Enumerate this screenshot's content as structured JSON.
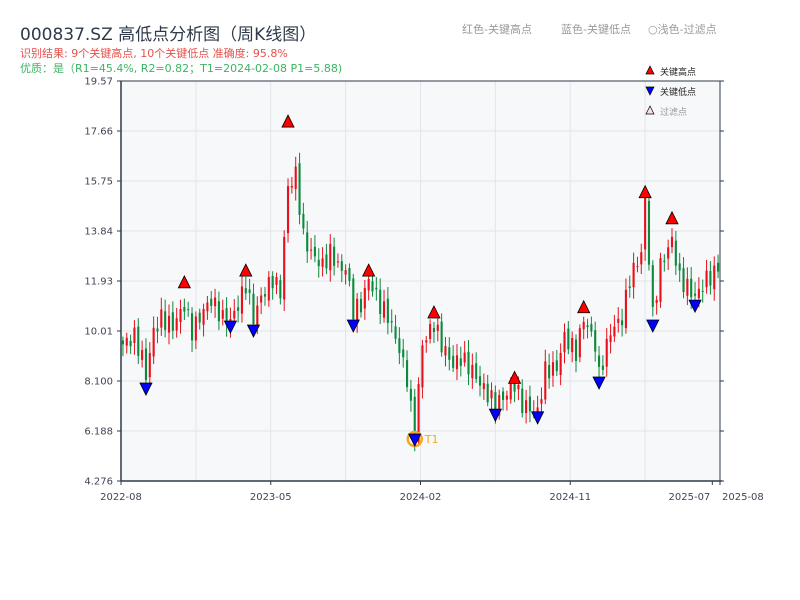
{
  "header": {
    "title": "000837.SZ 高低点分析图（周K线图）",
    "result_line": "识别结果: 9个关键高点, 10个关键低点  准确度: 95.8%",
    "quality_line": "优质：是（R1=45.4%, R2=0.82；T1=2024-02-08 P1=5.88)",
    "legend_red": "红色-关键高点",
    "legend_blue": "蓝色-关键低点",
    "legend_filtered": "○浅色-过滤点"
  },
  "colors": {
    "up": "#e8101a",
    "down": "#0c8a3c",
    "high_marker": "#ff0000",
    "low_marker": "#0000ff",
    "t1": "#f5a623",
    "plot_bg": "#f6f8fa"
  },
  "chart_data": {
    "type": "candlestick",
    "title": "000837.SZ 高低点分析图（周K线图）",
    "ylim": [
      4.276,
      19.57
    ],
    "yticks": [
      "19.57",
      "17.66",
      "15.75",
      "13.84",
      "11.93",
      "10.01",
      "8.100",
      "6.188",
      "4.276"
    ],
    "xlim_weeks": [
      0,
      156
    ],
    "xticks": [
      {
        "label": "2022-08",
        "week": 0
      },
      {
        "label": "2023-05",
        "week": 39
      },
      {
        "label": "2024-02",
        "week": 78
      },
      {
        "label": "2024-11",
        "week": 117
      },
      {
        "label": "2025-07",
        "week": 154
      },
      {
        "label": "2025-08",
        "week": 156
      }
    ],
    "price_path": [
      [
        0,
        9.5
      ],
      [
        3,
        9.8
      ],
      [
        5,
        9.0
      ],
      [
        6,
        8.3
      ],
      [
        8,
        10.0
      ],
      [
        10,
        10.5
      ],
      [
        13,
        10.2
      ],
      [
        16,
        11.0
      ],
      [
        18,
        10.0
      ],
      [
        21,
        10.8
      ],
      [
        23,
        11.2
      ],
      [
        26,
        10.5
      ],
      [
        28,
        10.4
      ],
      [
        30,
        11.0
      ],
      [
        32,
        11.8
      ],
      [
        34,
        10.5
      ],
      [
        36,
        11.3
      ],
      [
        39,
        12.0
      ],
      [
        41,
        11.5
      ],
      [
        43,
        15.5
      ],
      [
        45,
        16.0
      ],
      [
        47,
        13.6
      ],
      [
        49,
        13.0
      ],
      [
        52,
        12.5
      ],
      [
        54,
        13.0
      ],
      [
        57,
        12.3
      ],
      [
        58,
        12.5
      ],
      [
        60,
        10.8
      ],
      [
        62,
        11.0
      ],
      [
        64,
        12.0
      ],
      [
        67,
        11.0
      ],
      [
        69,
        10.6
      ],
      [
        72,
        9.3
      ],
      [
        74,
        8.2
      ],
      [
        75,
        7.0
      ],
      [
        76,
        6.1
      ],
      [
        78,
        9.5
      ],
      [
        81,
        10.3
      ],
      [
        83,
        9.5
      ],
      [
        86,
        8.7
      ],
      [
        88,
        9.0
      ],
      [
        91,
        8.5
      ],
      [
        93,
        8.0
      ],
      [
        97,
        7.2
      ],
      [
        100,
        7.6
      ],
      [
        102,
        8.0
      ],
      [
        104,
        7.2
      ],
      [
        108,
        6.9
      ],
      [
        110,
        8.5
      ],
      [
        113,
        8.6
      ],
      [
        115,
        9.8
      ],
      [
        118,
        9.2
      ],
      [
        120,
        10.5
      ],
      [
        123,
        9.5
      ],
      [
        124,
        8.3
      ],
      [
        127,
        10.0
      ],
      [
        130,
        10.5
      ],
      [
        132,
        12.0
      ],
      [
        135,
        13.0
      ],
      [
        136,
        15.0
      ],
      [
        138,
        10.6
      ],
      [
        140,
        12.5
      ],
      [
        143,
        13.5
      ],
      [
        145,
        12.0
      ],
      [
        147,
        11.7
      ],
      [
        149,
        11.3
      ],
      [
        152,
        12.0
      ],
      [
        154,
        12.2
      ],
      [
        156,
        12.8
      ]
    ],
    "key_highs": [
      {
        "week": 16,
        "price": 11.85
      },
      {
        "week": 32,
        "price": 12.3
      },
      {
        "week": 43,
        "price": 18.0
      },
      {
        "week": 64,
        "price": 12.3
      },
      {
        "week": 81,
        "price": 10.7
      },
      {
        "week": 102,
        "price": 8.2
      },
      {
        "week": 120,
        "price": 10.9
      },
      {
        "week": 136,
        "price": 15.3
      },
      {
        "week": 143,
        "price": 14.3
      }
    ],
    "key_lows": [
      {
        "week": 6,
        "price": 7.83
      },
      {
        "week": 28,
        "price": 10.2
      },
      {
        "week": 34,
        "price": 10.05
      },
      {
        "week": 60,
        "price": 10.24
      },
      {
        "week": 76,
        "price": 5.88
      },
      {
        "week": 97,
        "price": 6.83
      },
      {
        "week": 108,
        "price": 6.73
      },
      {
        "week": 124,
        "price": 8.06
      },
      {
        "week": 138,
        "price": 10.24
      },
      {
        "week": 149,
        "price": 11.0
      }
    ],
    "t1": {
      "label": "T1",
      "week": 76,
      "price": 5.88
    },
    "legend": [
      "关键高点",
      "关键低点",
      "过滤点"
    ]
  }
}
